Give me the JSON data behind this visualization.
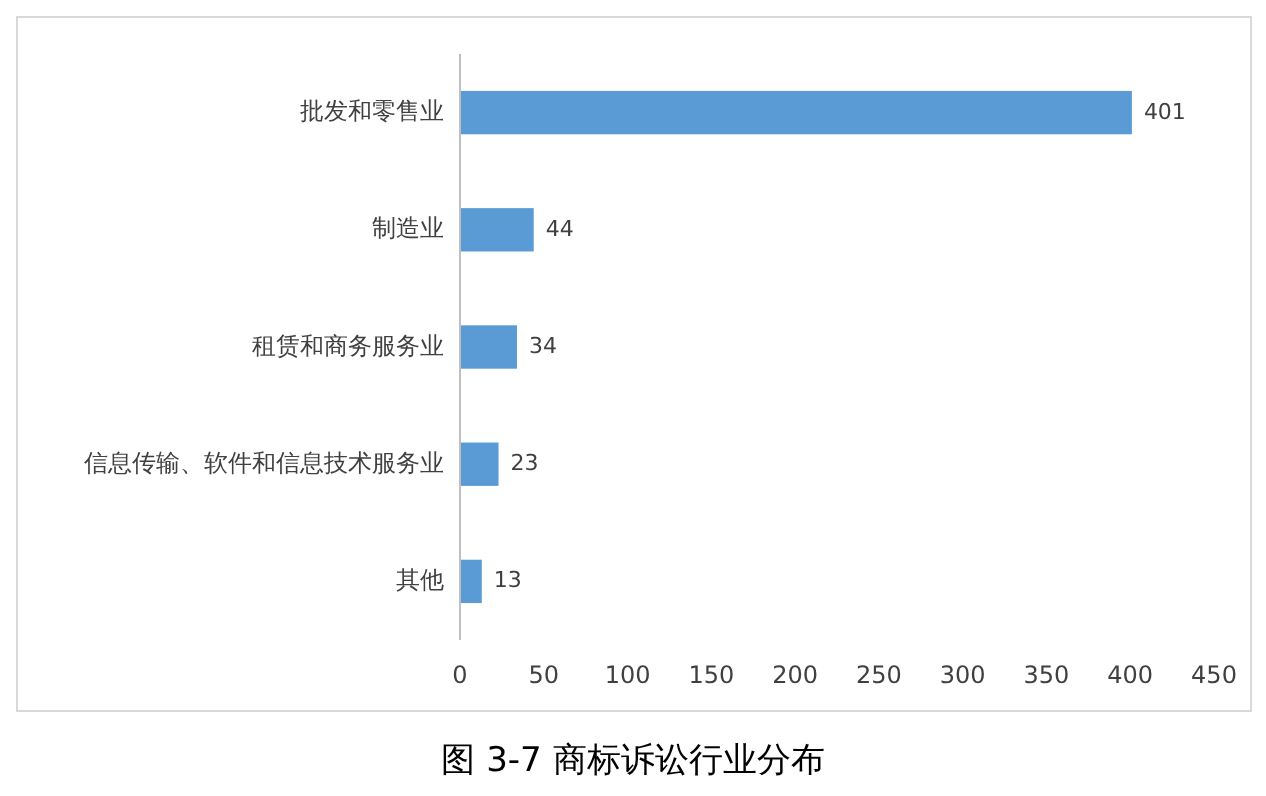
{
  "chart_data": {
    "type": "bar",
    "orientation": "horizontal",
    "title": "图 3-7 商标诉讼行业分布",
    "categories": [
      "批发和零售业",
      "制造业",
      "租赁和商务服务业",
      "信息传输、软件和信息技术服务业",
      "其他"
    ],
    "values": [
      401,
      44,
      34,
      23,
      13
    ],
    "color": "#5b9bd5",
    "xlim": [
      0,
      450
    ],
    "xticks": [
      0,
      50,
      100,
      150,
      200,
      250,
      300,
      350,
      400,
      450
    ],
    "data_labels": true
  }
}
